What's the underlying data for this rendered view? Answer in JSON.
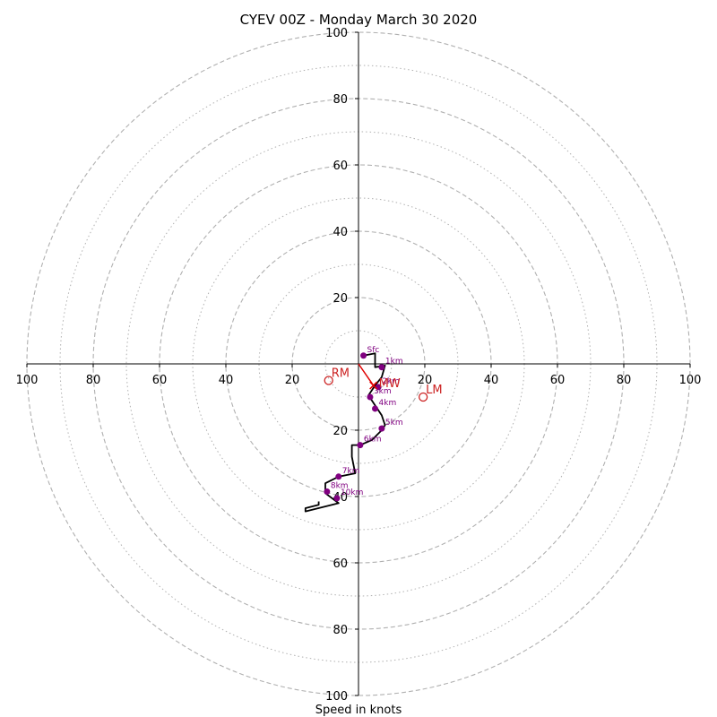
{
  "chart_data": {
    "type": "hodograph",
    "title": "CYEV 00Z - Monday March 30 2020",
    "xlabel": "Speed in knots",
    "ylabel": "",
    "range": [
      -100,
      100
    ],
    "rings_dashed": [
      20,
      40,
      60,
      80,
      100
    ],
    "rings_dotted": [
      10,
      30,
      50,
      70,
      90
    ],
    "ticks": [
      {
        "value": -100,
        "label": "100"
      },
      {
        "value": -80,
        "label": "80"
      },
      {
        "value": -60,
        "label": "60"
      },
      {
        "value": -40,
        "label": "40"
      },
      {
        "value": -20,
        "label": "20"
      },
      {
        "value": 20,
        "label": "20"
      },
      {
        "value": 40,
        "label": "40"
      },
      {
        "value": 60,
        "label": "60"
      },
      {
        "value": 80,
        "label": "80"
      },
      {
        "value": 100,
        "label": "100"
      }
    ],
    "hodograph_trace": [
      [
        1.5,
        2.5
      ],
      [
        5,
        3.2
      ],
      [
        5,
        -1
      ],
      [
        8,
        -0.5
      ],
      [
        7,
        -4
      ],
      [
        5,
        -6.5
      ],
      [
        3,
        -9.5
      ],
      [
        5,
        -12.5
      ],
      [
        7,
        -15.5
      ],
      [
        8,
        -18.5
      ],
      [
        7,
        -20
      ],
      [
        4,
        -23
      ],
      [
        0.5,
        -24.5
      ],
      [
        -2,
        -24.5
      ],
      [
        -2,
        -28
      ],
      [
        -1,
        -33
      ],
      [
        -6,
        -34
      ],
      [
        -10,
        -36
      ],
      [
        -10,
        -39
      ],
      [
        -6,
        -42
      ],
      [
        -8,
        -42.5
      ],
      [
        -16,
        -44.5
      ],
      [
        -16,
        -43.5
      ],
      [
        -12,
        -42.5
      ],
      [
        -12,
        -41.5
      ]
    ],
    "height_markers": [
      {
        "label": "Sfc",
        "u": 1.5,
        "v": 2.5
      },
      {
        "label": "1km",
        "u": 7,
        "v": -1
      },
      {
        "label": "2km",
        "u": 6,
        "v": -7
      },
      {
        "label": "3km",
        "u": 3.5,
        "v": -10
      },
      {
        "label": "4km",
        "u": 5,
        "v": -13.5
      },
      {
        "label": "5km",
        "u": 7,
        "v": -19.5
      },
      {
        "label": "6km",
        "u": 0.5,
        "v": -24.5
      },
      {
        "label": "7km",
        "u": -6,
        "v": -34
      },
      {
        "label": "8km",
        "u": -9.5,
        "v": -38.5
      },
      {
        "label": "10km",
        "u": -6.5,
        "v": -40.5
      }
    ],
    "storm_motion": [
      {
        "label": "RM",
        "u": -9,
        "v": -5
      },
      {
        "label": "LM",
        "u": 19.5,
        "v": -10
      },
      {
        "label": "MW",
        "u": 4.5,
        "v": -6.5
      }
    ],
    "mean_wind_vector": {
      "u": 4.5,
      "v": -6.5
    },
    "colors": {
      "trace": "#000000",
      "marker": "#800080",
      "storm": "#cc2222",
      "mean_wind": "#e00000",
      "ring": "#b0b0b0",
      "axis": "#000000"
    }
  }
}
